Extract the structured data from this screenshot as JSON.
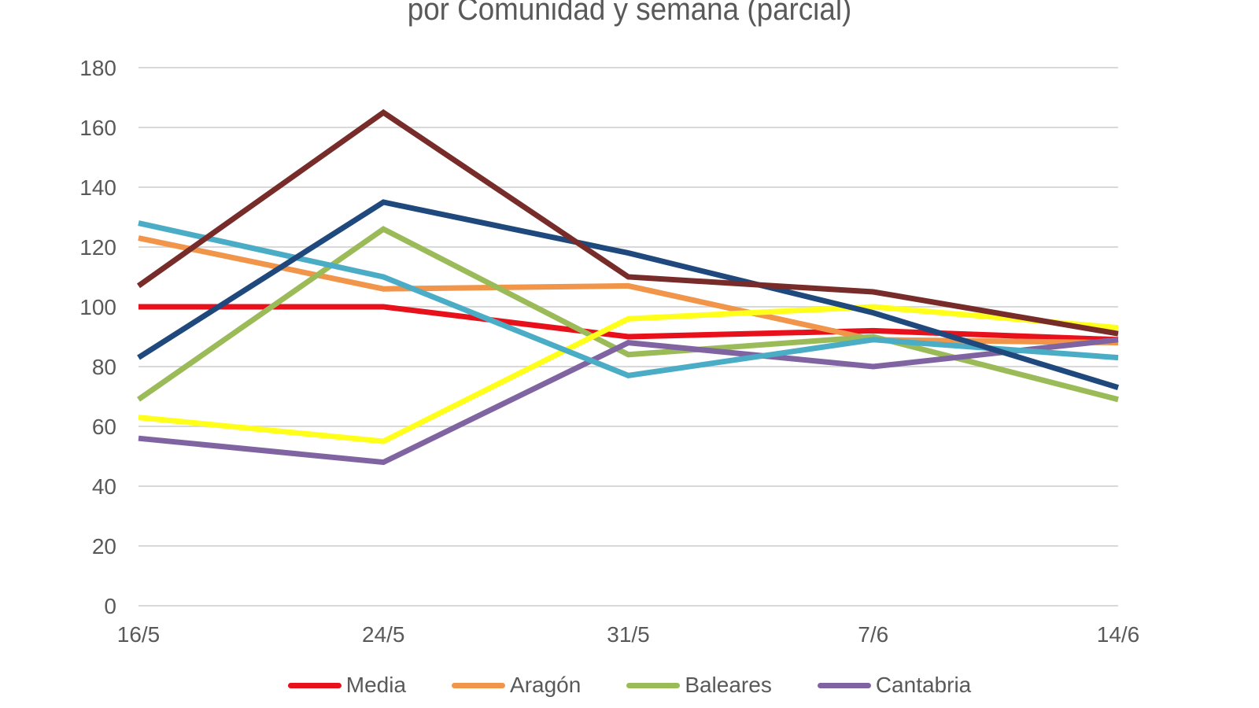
{
  "chart_data": {
    "type": "line",
    "title": "por Comunidad y semana (parcial)",
    "xlabel": "",
    "ylabel": "",
    "categories": [
      "16/5",
      "24/5",
      "31/5",
      "7/6",
      "14/6"
    ],
    "ylim": [
      0,
      180
    ],
    "yticks": [
      "0",
      "20",
      "40",
      "60",
      "80",
      "100",
      "120",
      "140",
      "160",
      "180"
    ],
    "grid": true,
    "legend_position": "bottom",
    "series": [
      {
        "name": "Media",
        "color": "#e8101a",
        "values": [
          100,
          100,
          90,
          92,
          89
        ],
        "in_legend": true
      },
      {
        "name": "Aragón",
        "color": "#f0954a",
        "values": [
          123,
          106,
          107,
          89,
          88
        ],
        "in_legend": true
      },
      {
        "name": "Baleares",
        "color": "#9bbb59",
        "values": [
          69,
          126,
          84,
          90,
          69
        ],
        "in_legend": true
      },
      {
        "name": "Cantabria",
        "color": "#8064a2",
        "values": [
          56,
          48,
          88,
          80,
          89
        ],
        "in_legend": true
      },
      {
        "name": "",
        "color": "#ffff1a",
        "values": [
          63,
          55,
          96,
          100,
          93
        ],
        "in_legend": false
      },
      {
        "name": "",
        "color": "#4bacc6",
        "values": [
          128,
          110,
          77,
          89,
          83
        ],
        "in_legend": false
      },
      {
        "name": "",
        "color": "#1f497d",
        "values": [
          83,
          135,
          118,
          98,
          73
        ],
        "in_legend": false
      },
      {
        "name": "",
        "color": "#772c2a",
        "values": [
          107,
          165,
          110,
          105,
          91
        ],
        "in_legend": false
      }
    ]
  }
}
